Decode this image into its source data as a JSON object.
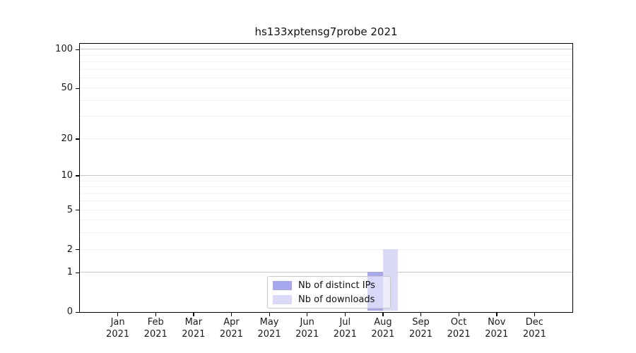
{
  "chart_data": {
    "type": "bar",
    "title": "hs133xptensg7probe 2021",
    "categories": [
      {
        "month": "Jan",
        "year": "2021"
      },
      {
        "month": "Feb",
        "year": "2021"
      },
      {
        "month": "Mar",
        "year": "2021"
      },
      {
        "month": "Apr",
        "year": "2021"
      },
      {
        "month": "May",
        "year": "2021"
      },
      {
        "month": "Jun",
        "year": "2021"
      },
      {
        "month": "Jul",
        "year": "2021"
      },
      {
        "month": "Aug",
        "year": "2021"
      },
      {
        "month": "Sep",
        "year": "2021"
      },
      {
        "month": "Oct",
        "year": "2021"
      },
      {
        "month": "Nov",
        "year": "2021"
      },
      {
        "month": "Dec",
        "year": "2021"
      }
    ],
    "series": [
      {
        "name": "Nb of distinct IPs",
        "color": "#a7a7ee",
        "values": [
          0,
          0,
          0,
          0,
          0,
          0,
          0,
          1,
          0,
          0,
          0,
          0
        ]
      },
      {
        "name": "Nb of downloads",
        "color": "#dadaf7",
        "values": [
          0,
          0,
          0,
          0,
          0,
          0,
          0,
          2,
          0,
          0,
          0,
          0
        ]
      }
    ],
    "y_axis": {
      "scale": "log1p",
      "ticks": [
        0,
        1,
        2,
        5,
        10,
        20,
        50,
        100
      ],
      "major_gridlines": [
        1,
        10,
        100
      ],
      "minor_gridlines": [
        2,
        3,
        4,
        5,
        6,
        7,
        8,
        9,
        20,
        30,
        40,
        50,
        60,
        70,
        80,
        90
      ],
      "top_value": 111,
      "ylim": [
        0,
        111
      ]
    },
    "legend_position": "bottom-center",
    "grid": "horizontal-only"
  },
  "colors": {
    "axis": "#000000",
    "major_grid": "#c9c9c9",
    "minor_grid": "#f0f0f0",
    "text": "#1a1a1a"
  }
}
